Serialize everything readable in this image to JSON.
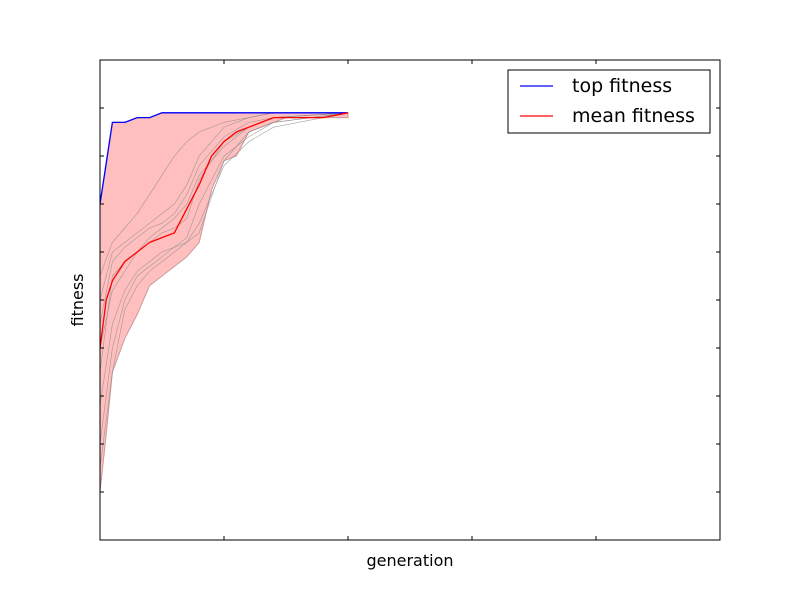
{
  "chart_data": {
    "type": "line",
    "title": "",
    "xlabel": "generation",
    "ylabel": "fitness",
    "xlim": [
      0,
      50
    ],
    "ylim": [
      0,
      100
    ],
    "x_ticks": [
      0,
      10,
      20,
      30,
      40,
      50
    ],
    "y_ticks": [
      0,
      10,
      20,
      30,
      40,
      50,
      60,
      70,
      80,
      90,
      100
    ],
    "grid": false,
    "legend_position": "top-right",
    "series": [
      {
        "name": "top fitness",
        "color": "#0000ff",
        "x": [
          0,
          1,
          2,
          3,
          4,
          5,
          6,
          13,
          20
        ],
        "y": [
          70,
          87,
          87,
          88,
          88,
          89,
          89,
          89,
          89
        ]
      },
      {
        "name": "mean fitness",
        "color": "#ff0000",
        "x": [
          0,
          0.5,
          1,
          2,
          3,
          4,
          5,
          6,
          7,
          8,
          9,
          10,
          11,
          12,
          13,
          14,
          15,
          16,
          18,
          20
        ],
        "y": [
          40,
          50,
          54,
          58,
          60,
          62,
          63,
          64,
          69,
          74,
          80,
          83,
          85,
          86,
          87,
          88,
          88,
          88,
          88,
          89
        ]
      }
    ],
    "band": {
      "color": "#ffbfbf",
      "edge_color": "#cc9999",
      "x": [
        0,
        0.5,
        1,
        2,
        3,
        4,
        5,
        6,
        7,
        8,
        9,
        10,
        11,
        12,
        13,
        14,
        15,
        16,
        18,
        20
      ],
      "upper": [
        70,
        78,
        87,
        87,
        88,
        88,
        89,
        89,
        89,
        89,
        89,
        89,
        89,
        89,
        89,
        89,
        89,
        89,
        89,
        89
      ],
      "lower": [
        10,
        22,
        35,
        42,
        47,
        53,
        55,
        57,
        59,
        62,
        73,
        79,
        80,
        85,
        86,
        87,
        88,
        88,
        88,
        88
      ]
    },
    "individual_runs": [
      {
        "x": [
          0,
          1,
          2,
          3,
          4,
          5,
          6,
          7,
          8,
          10,
          12,
          14,
          20
        ],
        "y": [
          28,
          45,
          52,
          56,
          58,
          60,
          61,
          62,
          66,
          78,
          83,
          86,
          89
        ]
      },
      {
        "x": [
          0,
          1,
          2,
          3,
          4,
          5,
          6,
          7,
          8,
          10,
          12,
          14,
          20
        ],
        "y": [
          20,
          40,
          50,
          55,
          57,
          59,
          61,
          63,
          70,
          80,
          84,
          87,
          89
        ]
      },
      {
        "x": [
          0,
          1,
          2,
          3,
          4,
          5,
          6,
          7,
          8,
          10,
          12,
          14,
          20
        ],
        "y": [
          35,
          55,
          58,
          60,
          62,
          64,
          65,
          67,
          75,
          83,
          86,
          88,
          89
        ]
      },
      {
        "x": [
          0,
          1,
          2,
          3,
          4,
          5,
          6,
          7,
          8,
          10,
          12,
          14,
          20
        ],
        "y": [
          50,
          60,
          62,
          64,
          66,
          68,
          70,
          74,
          80,
          86,
          88,
          89,
          89
        ]
      },
      {
        "x": [
          0,
          1,
          2,
          3,
          4,
          5,
          6,
          7,
          8,
          10,
          12,
          14,
          20
        ],
        "y": [
          45,
          58,
          61,
          63,
          65,
          66,
          68,
          72,
          78,
          84,
          87,
          88,
          89
        ]
      },
      {
        "x": [
          0,
          1,
          2,
          3,
          4,
          5,
          6,
          7,
          8,
          10,
          12,
          14,
          20
        ],
        "y": [
          15,
          35,
          48,
          53,
          56,
          58,
          60,
          62,
          64,
          79,
          85,
          87,
          89
        ]
      },
      {
        "x": [
          0,
          1,
          2,
          3,
          4,
          5,
          6,
          7,
          8,
          10,
          12,
          14,
          20
        ],
        "y": [
          55,
          62,
          65,
          68,
          72,
          76,
          80,
          83,
          85,
          87,
          88,
          89,
          89
        ]
      },
      {
        "x": [
          0,
          1,
          2,
          3,
          4,
          5,
          6,
          7,
          8,
          10,
          12,
          14,
          20
        ],
        "y": [
          40,
          52,
          56,
          60,
          63,
          65,
          67,
          70,
          76,
          82,
          86,
          88,
          89
        ]
      }
    ]
  }
}
